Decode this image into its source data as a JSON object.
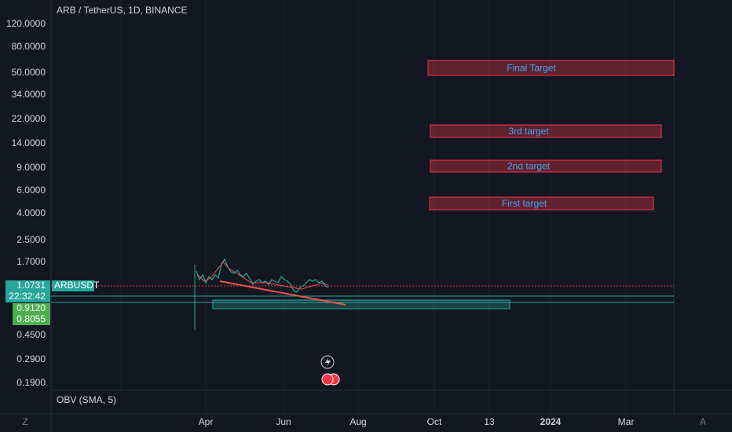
{
  "header": {
    "title": "ARB / TetherUS, 1D, BINANCE"
  },
  "price_axis": [
    "120.0000",
    "80.0000",
    "50.0000",
    "34.0000",
    "22.0000",
    "14.0000",
    "9.0000",
    "6.0000",
    "4.0000",
    "2.5000",
    "1.7000",
    "0.4500",
    "0.2900",
    "0.1900"
  ],
  "price_tags": {
    "last": "1.0731",
    "countdown": "22:32:42",
    "level_1": "0.9120",
    "level_2": "0.8055"
  },
  "symbol_tag": "ARBUSDT",
  "targets": [
    {
      "label": "Final Target"
    },
    {
      "label": "3rd target"
    },
    {
      "label": "2nd target"
    },
    {
      "label": "First target"
    }
  ],
  "indicator": {
    "label": "OBV (SMA, 5)"
  },
  "time_axis": [
    "Apr",
    "Jun",
    "Aug",
    "Oct",
    "13",
    "2024",
    "Mar"
  ],
  "corners": {
    "left": "Z",
    "right": "A"
  }
}
